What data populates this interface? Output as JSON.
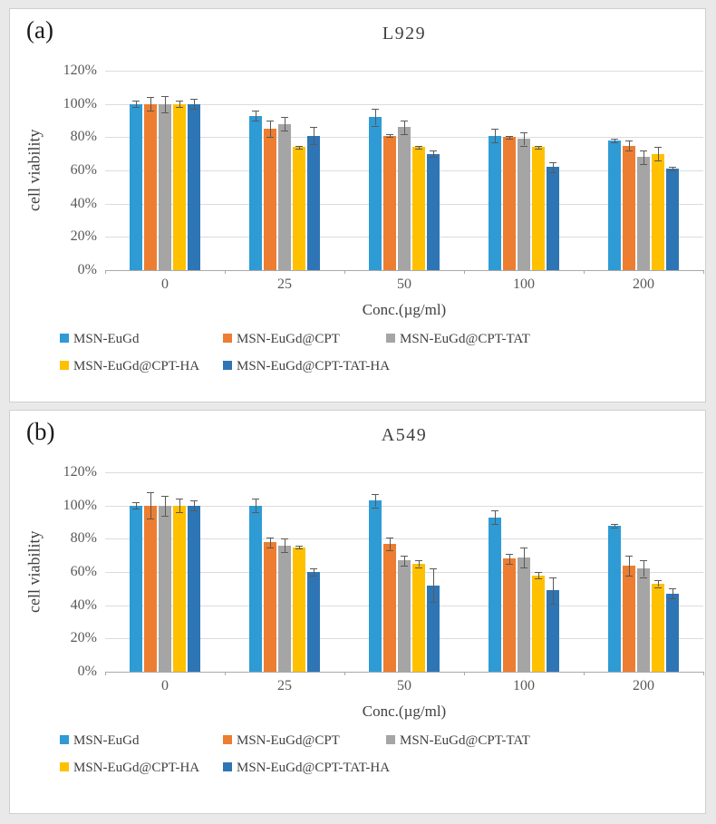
{
  "figure": {
    "background_color": "#E9E9E9",
    "panel_border_color": "#CFCFCF",
    "grid_color": "#DCDCDC",
    "axis_color": "#A9A9A9",
    "error_bar_color": "#595959"
  },
  "chart_data": [
    {
      "type": "bar",
      "panel_label": "(a)",
      "title": "L929",
      "ylabel": "cell viability",
      "xlabel": "Conc.(µg/ml)",
      "categories": [
        "0",
        "25",
        "50",
        "100",
        "200"
      ],
      "yticks": [
        "0%",
        "20%",
        "40%",
        "60%",
        "80%",
        "100%",
        "120%"
      ],
      "ylim_percent": [
        0,
        120
      ],
      "grid": true,
      "legend_position": "bottom",
      "series": [
        {
          "name": "MSN-EuGd",
          "color": "#2E9BD5",
          "values": [
            100,
            93,
            92,
            81,
            78
          ],
          "errors": [
            2,
            3,
            5,
            4,
            1
          ]
        },
        {
          "name": "MSN-EuGd@CPT",
          "color": "#ED7D31",
          "values": [
            100,
            85,
            81,
            80,
            75
          ],
          "errors": [
            4,
            5,
            1,
            1,
            3
          ]
        },
        {
          "name": "MSN-EuGd@CPT-TAT",
          "color": "#A5A5A5",
          "values": [
            100,
            88,
            86,
            79,
            68
          ],
          "errors": [
            5,
            4,
            4,
            4,
            4
          ]
        },
        {
          "name": "MSN-EuGd@CPT-HA",
          "color": "#FFC000",
          "values": [
            100,
            74,
            74,
            74,
            70
          ],
          "errors": [
            2,
            1,
            1,
            1,
            4
          ]
        },
        {
          "name": "MSN-EuGd@CPT-TAT-HA",
          "color": "#2E75B6",
          "values": [
            100,
            81,
            70,
            62,
            61
          ],
          "errors": [
            3,
            5,
            2,
            3,
            1
          ]
        }
      ]
    },
    {
      "type": "bar",
      "panel_label": "(b)",
      "title": "A549",
      "ylabel": "cell viability",
      "xlabel": "Conc.(µg/ml)",
      "categories": [
        "0",
        "25",
        "50",
        "100",
        "200"
      ],
      "yticks": [
        "0%",
        "20%",
        "40%",
        "60%",
        "80%",
        "100%",
        "120%"
      ],
      "ylim_percent": [
        0,
        120
      ],
      "grid": true,
      "legend_position": "bottom",
      "series": [
        {
          "name": "MSN-EuGd",
          "color": "#2E9BD5",
          "values": [
            100,
            100,
            103,
            93,
            88
          ],
          "errors": [
            2,
            4,
            4,
            4,
            1
          ]
        },
        {
          "name": "MSN-EuGd@CPT",
          "color": "#ED7D31",
          "values": [
            100,
            78,
            77,
            68,
            64
          ],
          "errors": [
            8,
            3,
            4,
            3,
            6
          ]
        },
        {
          "name": "MSN-EuGd@CPT-TAT",
          "color": "#A5A5A5",
          "values": [
            100,
            76,
            67,
            69,
            62
          ],
          "errors": [
            6,
            4,
            3,
            6,
            5
          ]
        },
        {
          "name": "MSN-EuGd@CPT-HA",
          "color": "#FFC000",
          "values": [
            100,
            75,
            65,
            58,
            53
          ],
          "errors": [
            4,
            1,
            2,
            2,
            2
          ]
        },
        {
          "name": "MSN-EuGd@CPT-TAT-HA",
          "color": "#2E75B6",
          "values": [
            100,
            60,
            52,
            49,
            47
          ],
          "errors": [
            3,
            2,
            10,
            8,
            3
          ]
        }
      ]
    }
  ]
}
